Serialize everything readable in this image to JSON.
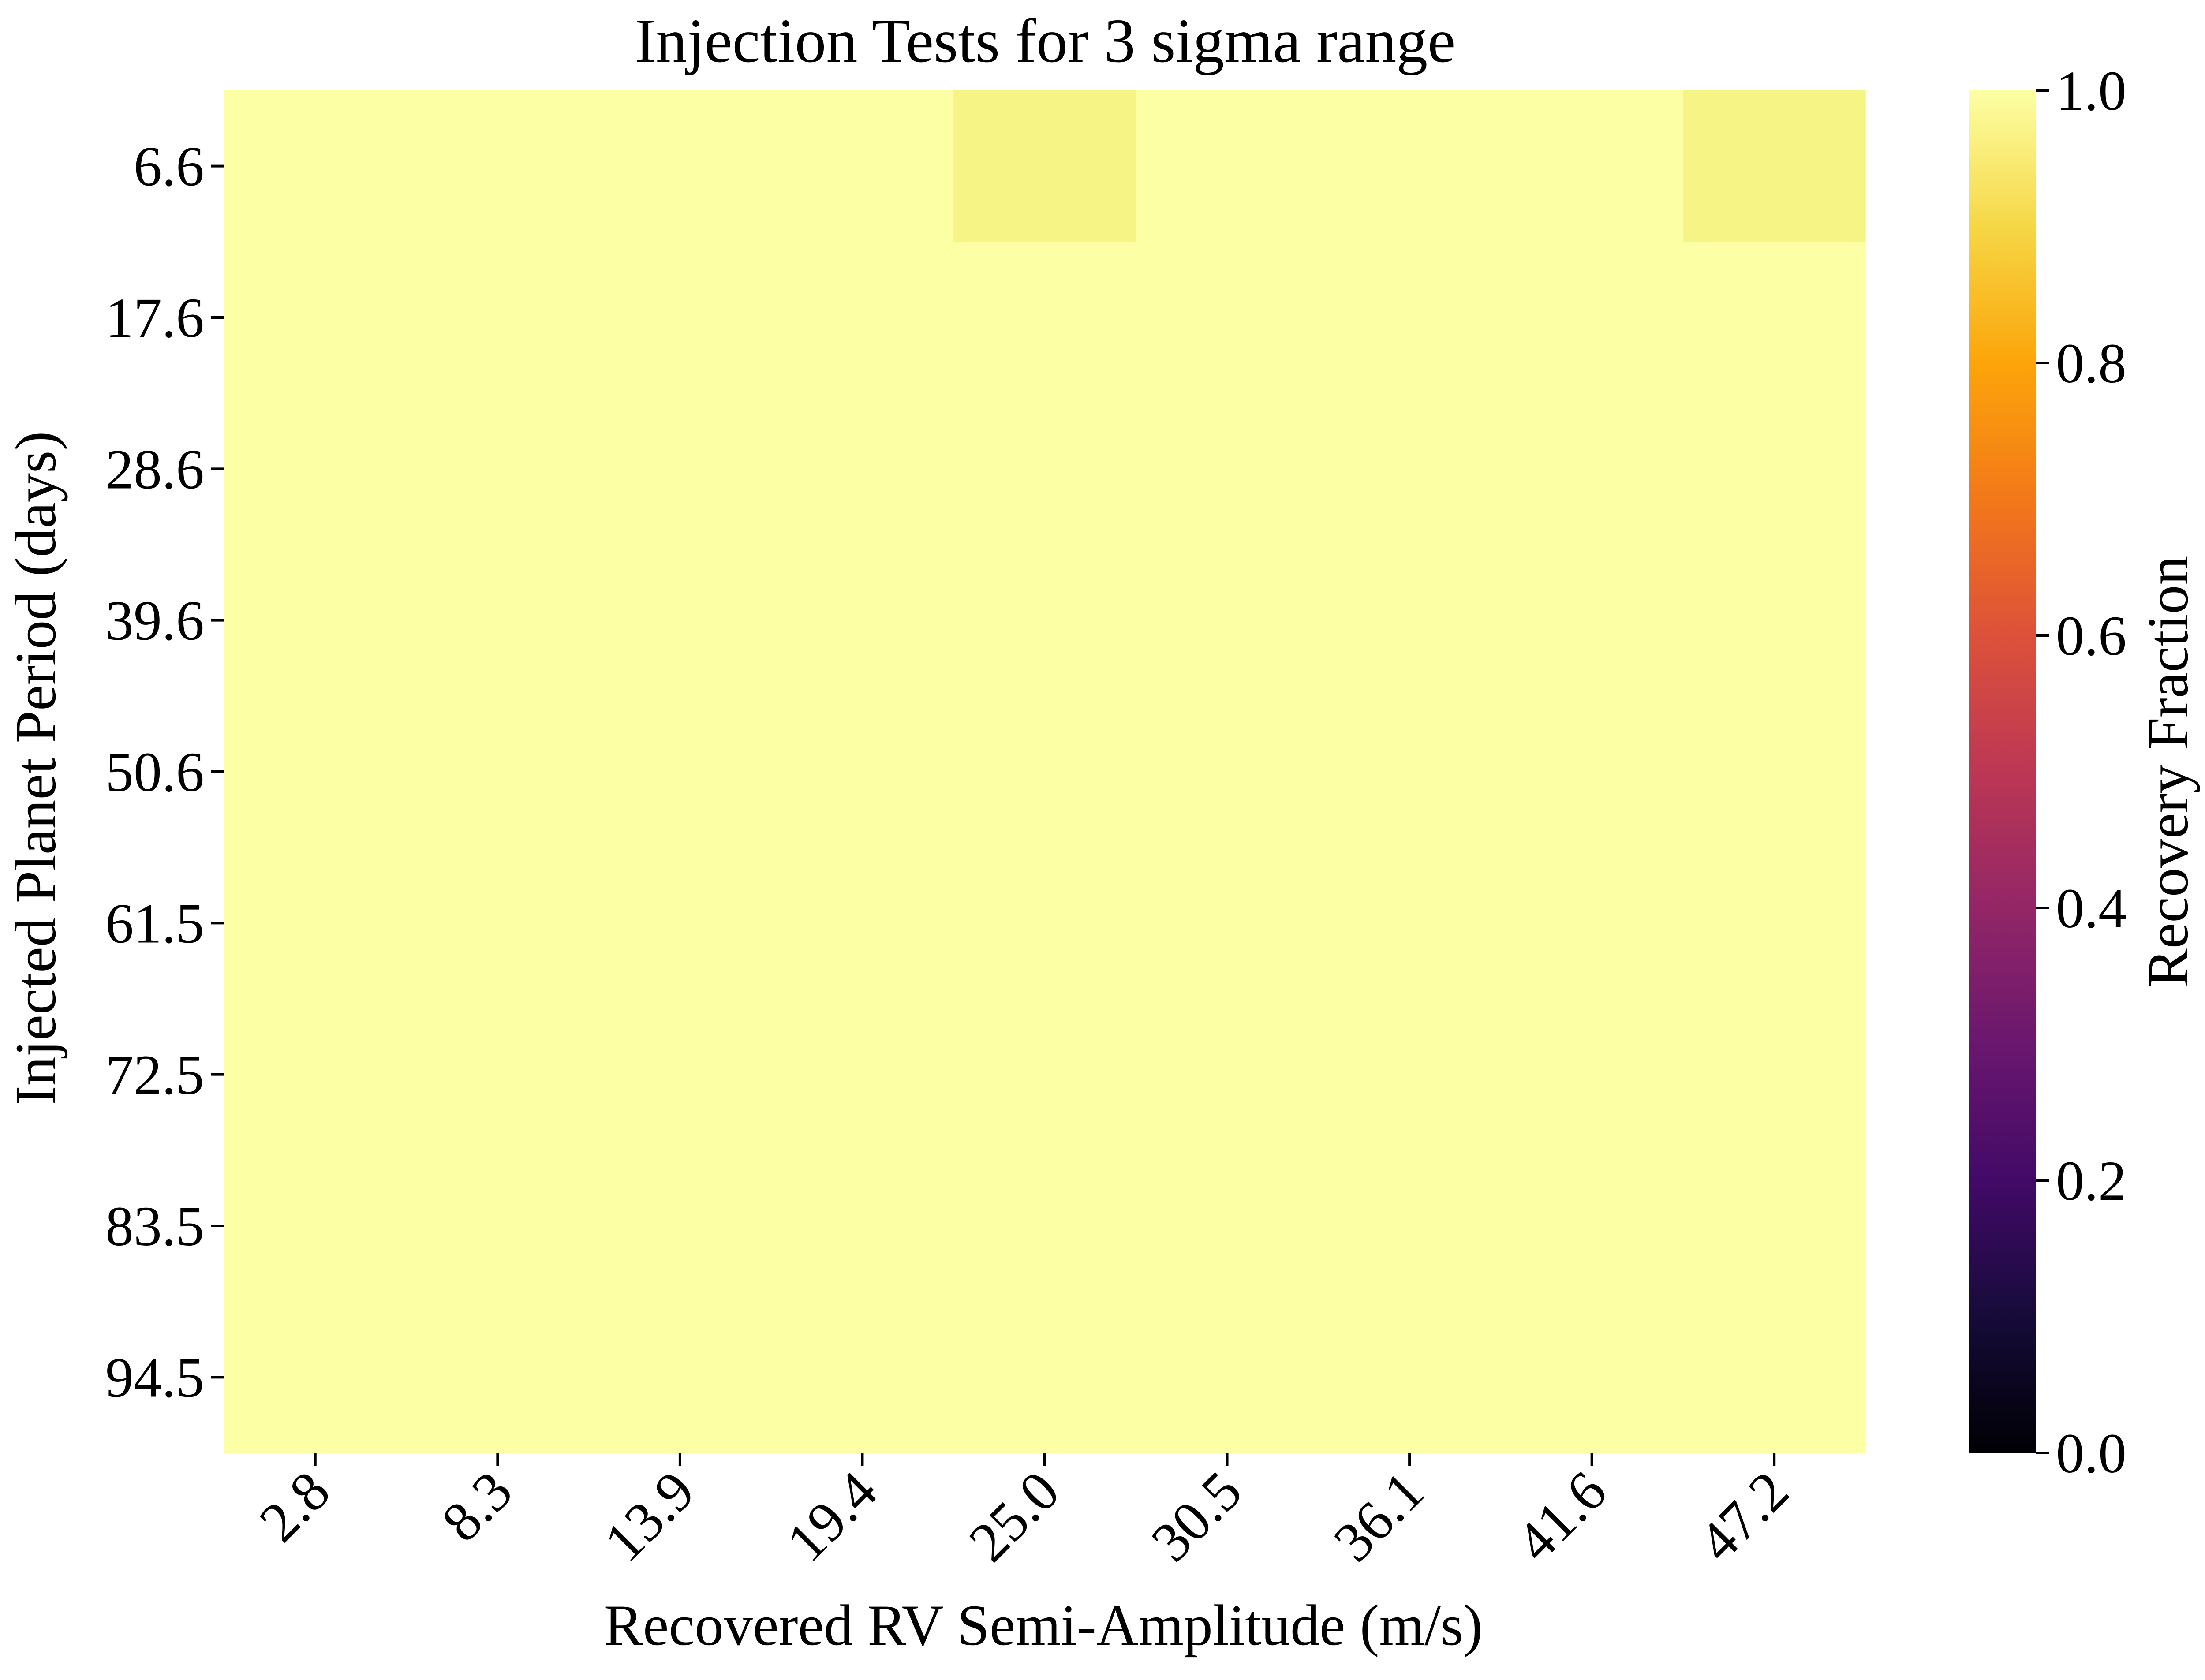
{
  "chart_data": {
    "type": "heatmap",
    "title": "Injection Tests for 3 sigma range",
    "xlabel": "Recovered RV Semi-Amplitude (m/s)",
    "ylabel": "Injected Planet Period (days)",
    "x_ticks": [
      "2.8",
      "8.3",
      "13.9",
      "19.4",
      "25.0",
      "30.5",
      "36.1",
      "41.6",
      "47.2"
    ],
    "y_ticks": [
      "6.6",
      "17.6",
      "28.6",
      "39.6",
      "50.6",
      "61.5",
      "72.5",
      "83.5",
      "94.5"
    ],
    "values": [
      [
        1.0,
        1.0,
        1.0,
        1.0,
        0.97,
        1.0,
        1.0,
        1.0,
        0.97
      ],
      [
        1.0,
        1.0,
        1.0,
        1.0,
        1.0,
        1.0,
        1.0,
        1.0,
        1.0
      ],
      [
        1.0,
        1.0,
        1.0,
        1.0,
        1.0,
        1.0,
        1.0,
        1.0,
        1.0
      ],
      [
        1.0,
        1.0,
        1.0,
        1.0,
        1.0,
        1.0,
        1.0,
        1.0,
        1.0
      ],
      [
        1.0,
        1.0,
        1.0,
        1.0,
        1.0,
        1.0,
        1.0,
        1.0,
        1.0
      ],
      [
        1.0,
        1.0,
        1.0,
        1.0,
        1.0,
        1.0,
        1.0,
        1.0,
        1.0
      ],
      [
        1.0,
        1.0,
        1.0,
        1.0,
        1.0,
        1.0,
        1.0,
        1.0,
        1.0
      ],
      [
        1.0,
        1.0,
        1.0,
        1.0,
        1.0,
        1.0,
        1.0,
        1.0,
        1.0
      ],
      [
        1.0,
        1.0,
        1.0,
        1.0,
        1.0,
        1.0,
        1.0,
        1.0,
        1.0
      ]
    ],
    "colormap": "inferno",
    "colorbar": {
      "label": "Recovery Fraction",
      "range": [
        0.0,
        1.0
      ],
      "ticks": [
        "0.0",
        "0.2",
        "0.4",
        "0.6",
        "0.8",
        "1.0"
      ]
    },
    "grid": false
  }
}
